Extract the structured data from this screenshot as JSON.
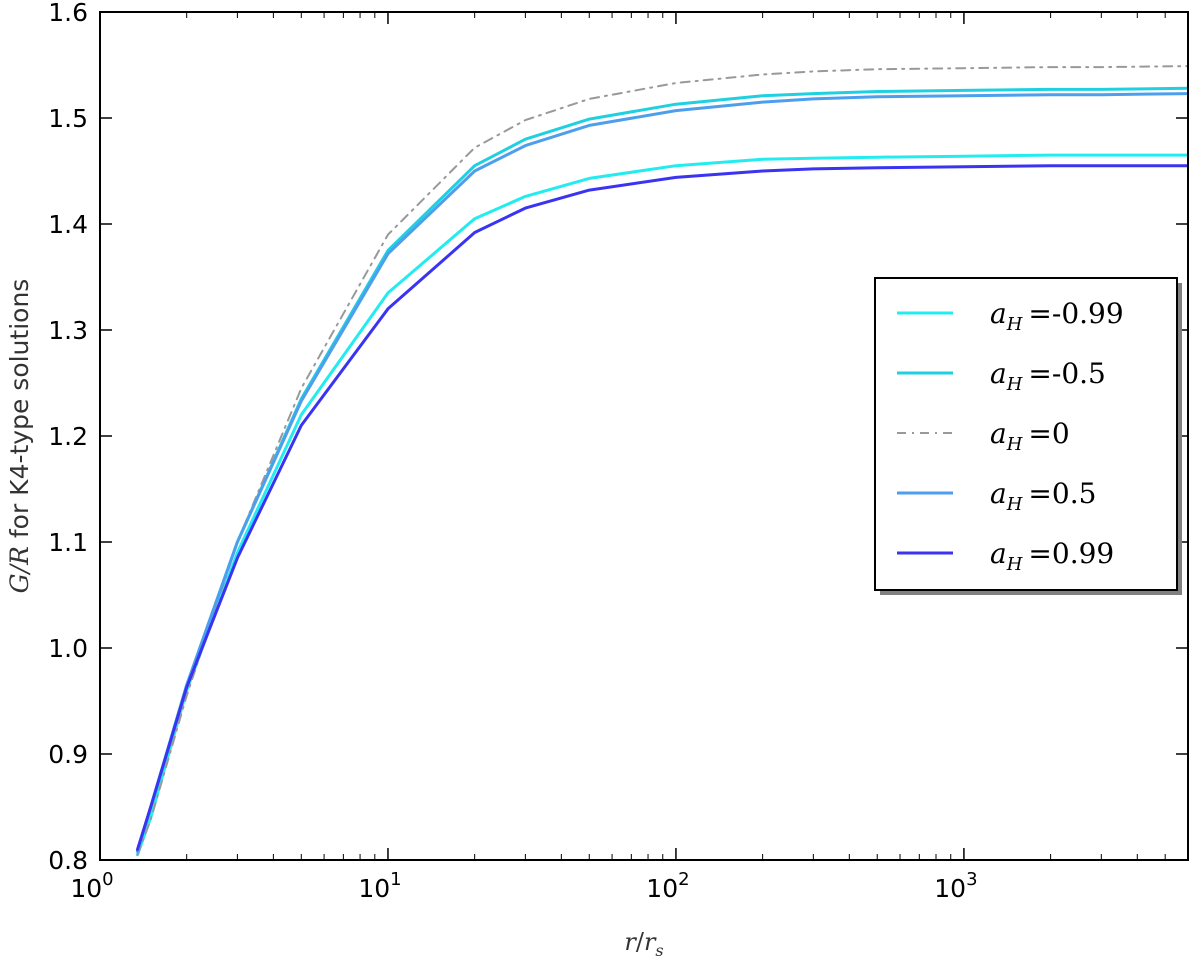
{
  "chart_data": {
    "type": "line",
    "xscale": "log",
    "xlim": [
      1,
      6000
    ],
    "ylim": [
      0.8,
      1.6
    ],
    "xlabel_math": {
      "var": "r",
      "sub_var": "r",
      "sub": "s"
    },
    "ylabel": {
      "math": "G/R",
      "text": " for K4-type solutions"
    },
    "xticks": [
      {
        "value": 1,
        "base": "10",
        "exp": "0"
      },
      {
        "value": 10,
        "base": "10",
        "exp": "1"
      },
      {
        "value": 100,
        "base": "10",
        "exp": "2"
      },
      {
        "value": 1000,
        "base": "10",
        "exp": "3"
      }
    ],
    "yticks": [
      "0.8",
      "0.9",
      "1.0",
      "1.1",
      "1.2",
      "1.3",
      "1.4",
      "1.5",
      "1.6"
    ],
    "grid": false,
    "legend_position": "center-right",
    "series": [
      {
        "name": "-0.99",
        "color": "#22ecf0",
        "dash": "solid",
        "x": [
          1.35,
          1.5,
          2,
          3,
          5,
          10,
          20,
          30,
          50,
          100,
          200,
          300,
          500,
          1000,
          2000,
          3000,
          6000
        ],
        "y": [
          0.805,
          0.84,
          0.96,
          1.09,
          1.22,
          1.335,
          1.405,
          1.426,
          1.443,
          1.455,
          1.461,
          1.462,
          1.463,
          1.464,
          1.465,
          1.465,
          1.465
        ]
      },
      {
        "name": "-0.5",
        "color": "#1fd0e0",
        "dash": "solid",
        "x": [
          1.35,
          1.5,
          2,
          3,
          5,
          10,
          20,
          30,
          50,
          100,
          200,
          300,
          500,
          1000,
          2000,
          3000,
          6000
        ],
        "y": [
          0.808,
          0.85,
          0.965,
          1.1,
          1.235,
          1.375,
          1.455,
          1.48,
          1.499,
          1.513,
          1.521,
          1.523,
          1.525,
          1.526,
          1.527,
          1.527,
          1.528
        ]
      },
      {
        "name": "0",
        "color": "#999999",
        "dash": "dashdot",
        "x": [
          1.35,
          1.5,
          2,
          3,
          5,
          10,
          20,
          30,
          50,
          100,
          200,
          300,
          500,
          1000,
          2000,
          3000,
          6000
        ],
        "y": [
          0.805,
          0.838,
          0.955,
          1.1,
          1.245,
          1.39,
          1.472,
          1.498,
          1.518,
          1.533,
          1.541,
          1.544,
          1.546,
          1.547,
          1.548,
          1.548,
          1.549
        ]
      },
      {
        "name": "0.5",
        "color": "#4d9fee",
        "dash": "solid",
        "x": [
          1.35,
          1.5,
          2,
          3,
          5,
          10,
          20,
          30,
          50,
          100,
          200,
          300,
          500,
          1000,
          2000,
          3000,
          6000
        ],
        "y": [
          0.808,
          0.85,
          0.965,
          1.1,
          1.233,
          1.372,
          1.45,
          1.474,
          1.493,
          1.507,
          1.515,
          1.518,
          1.52,
          1.521,
          1.522,
          1.522,
          1.523
        ]
      },
      {
        "name": "0.99",
        "color": "#3a33f2",
        "dash": "solid",
        "x": [
          1.35,
          1.5,
          2,
          3,
          5,
          10,
          20,
          30,
          50,
          100,
          200,
          300,
          500,
          1000,
          2000,
          3000,
          6000
        ],
        "y": [
          0.81,
          0.85,
          0.963,
          1.085,
          1.21,
          1.32,
          1.392,
          1.415,
          1.432,
          1.444,
          1.45,
          1.452,
          1.453,
          1.454,
          1.455,
          1.455,
          1.455
        ]
      }
    ],
    "legend_label_prefix": {
      "var": "a",
      "sub": "H",
      "eq": "="
    }
  }
}
